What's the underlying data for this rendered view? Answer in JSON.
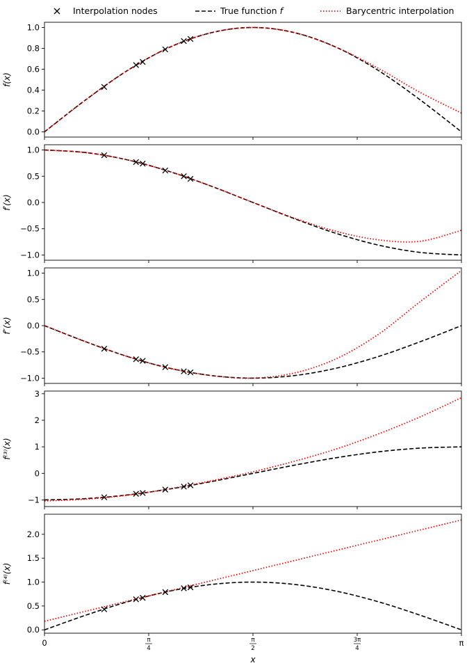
{
  "legend": {
    "nodes": "Interpolation nodes",
    "true_fn": "True function",
    "true_fn_symbol": "f",
    "bary": "Barycentric interpolation"
  },
  "xaxis": {
    "label": "x",
    "ticks": [
      "0",
      "π/4",
      "π/2",
      "3π/4",
      "π"
    ]
  },
  "colors": {
    "true_fn": "#000000",
    "bary": "#ff0000",
    "nodes": "#000000"
  },
  "chart_data": [
    {
      "type": "line",
      "ylabel": "f(x)",
      "ylim": [
        -0.05,
        1.05
      ],
      "yticks": [
        0.0,
        0.2,
        0.4,
        0.6,
        0.8,
        1.0
      ],
      "ytick_labels": [
        "0.0",
        "0.2",
        "0.4",
        "0.6",
        "0.8",
        "1.0"
      ],
      "series": [
        {
          "name": "Interpolation nodes",
          "style": "markers",
          "x": [
            0.45,
            0.69,
            0.74,
            0.91,
            1.05,
            1.1
          ],
          "y": [
            0.43,
            0.64,
            0.67,
            0.79,
            0.87,
            0.89
          ]
        },
        {
          "name": "True function f",
          "style": "dashed",
          "x": [
            0,
            0.314,
            0.628,
            0.942,
            1.257,
            1.571,
            1.885,
            2.199,
            2.513,
            2.827,
            3.1416
          ],
          "y": [
            0,
            0.31,
            0.59,
            0.81,
            0.95,
            1.0,
            0.95,
            0.81,
            0.59,
            0.31,
            0
          ]
        },
        {
          "name": "Barycentric interpolation",
          "style": "dotted",
          "x": [
            0,
            0.314,
            0.628,
            0.942,
            1.257,
            1.571,
            1.885,
            2.199,
            2.513,
            2.827,
            3.1416
          ],
          "y": [
            0,
            0.31,
            0.59,
            0.81,
            0.95,
            1.0,
            0.95,
            0.81,
            0.61,
            0.38,
            0.18
          ]
        }
      ]
    },
    {
      "type": "line",
      "ylabel": "f′(x)",
      "ylim": [
        -1.1,
        1.1
      ],
      "yticks": [
        -1.0,
        -0.5,
        0.0,
        0.5,
        1.0
      ],
      "ytick_labels": [
        "−1.0",
        "−0.5",
        "0.0",
        "0.5",
        "1.0"
      ],
      "series": [
        {
          "name": "Interpolation nodes",
          "style": "markers",
          "x": [
            0.45,
            0.69,
            0.74,
            0.91,
            1.05,
            1.1
          ],
          "y": [
            0.9,
            0.77,
            0.74,
            0.61,
            0.5,
            0.45
          ]
        },
        {
          "name": "True function f",
          "style": "dashed",
          "x": [
            0,
            0.314,
            0.628,
            0.942,
            1.257,
            1.571,
            1.885,
            2.199,
            2.513,
            2.827,
            3.1416
          ],
          "y": [
            1.0,
            0.95,
            0.81,
            0.59,
            0.31,
            0,
            -0.31,
            -0.59,
            -0.81,
            -0.95,
            -1.0
          ]
        },
        {
          "name": "Barycentric interpolation",
          "style": "dotted",
          "x": [
            0,
            0.314,
            0.628,
            0.942,
            1.257,
            1.571,
            1.885,
            2.199,
            2.513,
            2.827,
            3.1416
          ],
          "y": [
            1.0,
            0.95,
            0.81,
            0.59,
            0.31,
            0,
            -0.3,
            -0.55,
            -0.71,
            -0.74,
            -0.53
          ]
        }
      ]
    },
    {
      "type": "line",
      "ylabel": "f″(x)",
      "ylim": [
        -1.1,
        1.1
      ],
      "yticks": [
        -1.0,
        -0.5,
        0.0,
        0.5,
        1.0
      ],
      "ytick_labels": [
        "−1.0",
        "−0.5",
        "0.0",
        "0.5",
        "1.0"
      ],
      "series": [
        {
          "name": "Interpolation nodes",
          "style": "markers",
          "x": [
            0.45,
            0.69,
            0.74,
            0.91,
            1.05,
            1.1
          ],
          "y": [
            -0.44,
            -0.64,
            -0.67,
            -0.79,
            -0.87,
            -0.89
          ]
        },
        {
          "name": "True function f",
          "style": "dashed",
          "x": [
            0,
            0.314,
            0.628,
            0.942,
            1.257,
            1.571,
            1.885,
            2.199,
            2.513,
            2.827,
            3.1416
          ],
          "y": [
            0,
            -0.31,
            -0.59,
            -0.81,
            -0.95,
            -1.0,
            -0.95,
            -0.81,
            -0.59,
            -0.31,
            0
          ]
        },
        {
          "name": "Barycentric interpolation",
          "style": "dotted",
          "x": [
            0,
            0.314,
            0.628,
            0.942,
            1.257,
            1.571,
            1.885,
            2.199,
            2.513,
            2.827,
            3.1416
          ],
          "y": [
            0,
            -0.31,
            -0.59,
            -0.81,
            -0.95,
            -1.0,
            -0.9,
            -0.63,
            -0.17,
            0.45,
            1.05
          ]
        }
      ]
    },
    {
      "type": "line",
      "ylabel": "f⁽³⁾(x)",
      "ylim": [
        -1.25,
        3.1
      ],
      "yticks": [
        -1,
        0,
        1,
        2,
        3
      ],
      "ytick_labels": [
        "−1",
        "0",
        "1",
        "2",
        "3"
      ],
      "series": [
        {
          "name": "Interpolation nodes",
          "style": "markers",
          "x": [
            0.45,
            0.69,
            0.74,
            0.91,
            1.05,
            1.1
          ],
          "y": [
            -0.9,
            -0.77,
            -0.74,
            -0.61,
            -0.5,
            -0.45
          ]
        },
        {
          "name": "True function f",
          "style": "dashed",
          "x": [
            0,
            0.314,
            0.628,
            0.942,
            1.257,
            1.571,
            1.885,
            2.199,
            2.513,
            2.827,
            3.1416
          ],
          "y": [
            -1.0,
            -0.95,
            -0.81,
            -0.59,
            -0.31,
            0,
            0.31,
            0.59,
            0.81,
            0.95,
            1.0
          ]
        },
        {
          "name": "Barycentric interpolation",
          "style": "dotted",
          "x": [
            0,
            0.314,
            0.628,
            0.942,
            1.257,
            1.571,
            1.885,
            2.199,
            2.513,
            2.827,
            3.1416
          ],
          "y": [
            -1.04,
            -0.97,
            -0.82,
            -0.58,
            -0.28,
            0.06,
            0.46,
            0.92,
            1.48,
            2.12,
            2.85
          ]
        }
      ]
    },
    {
      "type": "line",
      "ylabel": "f⁽⁴⁾(x)",
      "ylim": [
        -0.07,
        2.42
      ],
      "yticks": [
        0.0,
        0.5,
        1.0,
        1.5,
        2.0
      ],
      "ytick_labels": [
        "0.0",
        "0.5",
        "1.0",
        "1.5",
        "2.0"
      ],
      "series": [
        {
          "name": "Interpolation nodes",
          "style": "markers",
          "x": [
            0.45,
            0.69,
            0.74,
            0.91,
            1.05,
            1.1
          ],
          "y": [
            0.43,
            0.64,
            0.67,
            0.79,
            0.87,
            0.89
          ]
        },
        {
          "name": "True function f",
          "style": "dashed",
          "x": [
            0,
            0.314,
            0.628,
            0.942,
            1.257,
            1.571,
            1.885,
            2.199,
            2.513,
            2.827,
            3.1416
          ],
          "y": [
            0,
            0.31,
            0.59,
            0.81,
            0.95,
            1.0,
            0.95,
            0.81,
            0.59,
            0.31,
            0
          ]
        },
        {
          "name": "Barycentric interpolation",
          "style": "dotted",
          "x": [
            0,
            3.1416
          ],
          "y": [
            0.18,
            2.3
          ]
        }
      ]
    }
  ]
}
